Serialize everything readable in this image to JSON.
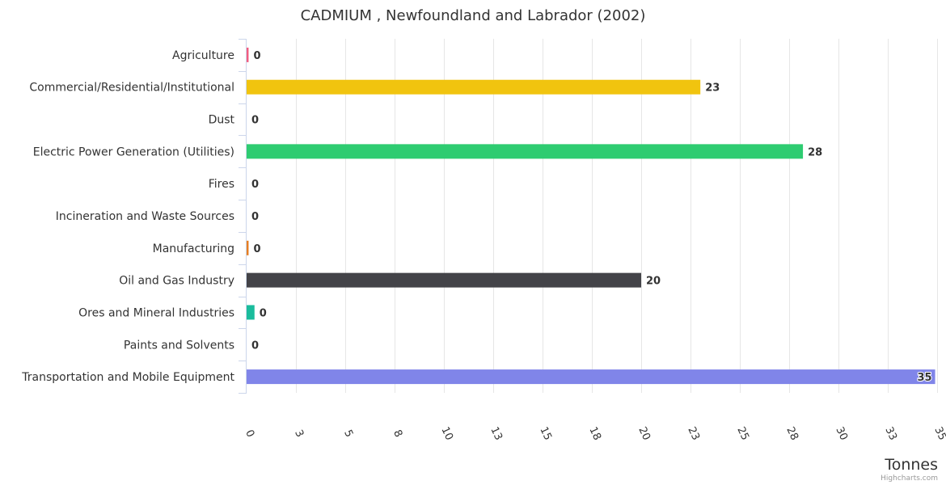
{
  "chart_data": {
    "type": "bar",
    "orientation": "horizontal",
    "title": "CADMIUM , Newfoundland and Labrador (2002)",
    "xlabel": "",
    "ylabel": "Tonnes",
    "credits": "Highcharts.com",
    "categories": [
      "Agriculture",
      "Commercial/Residential/Institutional",
      "Dust",
      "Electric Power Generation (Utilities)",
      "Fires",
      "Incineration and Waste Sources",
      "Manufacturing",
      "Oil and Gas Industry",
      "Ores and Mineral Industries",
      "Paints and Solvents",
      "Transportation and Mobile Equipment"
    ],
    "values": [
      0.1,
      23,
      0,
      28.2,
      0,
      0,
      0.1,
      20,
      0.4,
      0,
      34.9
    ],
    "data_labels": [
      "0",
      "23",
      "0",
      "28",
      "0",
      "0",
      "0",
      "20",
      "0",
      "0",
      "35"
    ],
    "colors": [
      "#f15c80",
      "#f1c40f",
      "#2b908f",
      "#2ecc71",
      "#e74c3c",
      "#3498db",
      "#e67e22",
      "#434348",
      "#1abc9c",
      "#7cb5ec",
      "#8085e9"
    ],
    "tick_values": [
      0,
      2.5,
      5,
      7.5,
      10,
      12.5,
      15,
      17.5,
      20,
      22.5,
      25,
      27.5,
      30,
      32.5,
      35
    ],
    "tick_labels": [
      "0",
      "3",
      "5",
      "8",
      "10",
      "13",
      "15",
      "18",
      "20",
      "23",
      "25",
      "28",
      "30",
      "33",
      "35"
    ],
    "ylim": [
      0,
      35
    ],
    "grid": true,
    "legend": "none"
  }
}
